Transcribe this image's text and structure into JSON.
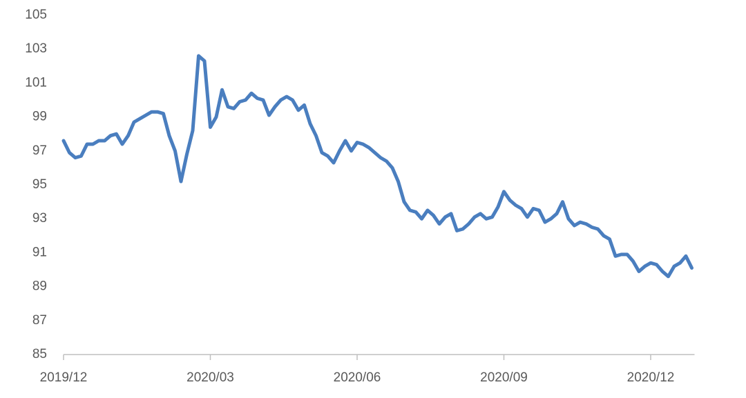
{
  "chart_data": {
    "type": "line",
    "color": "#4a7ebf",
    "categories": [
      "2019/12",
      null,
      null,
      null,
      null,
      null,
      null,
      null,
      null,
      null,
      null,
      null,
      null,
      null,
      null,
      null,
      null,
      null,
      null,
      null,
      null,
      null,
      null,
      null,
      null,
      "2020/03",
      null,
      null,
      null,
      null,
      null,
      null,
      null,
      null,
      null,
      null,
      null,
      null,
      null,
      null,
      null,
      null,
      null,
      null,
      null,
      null,
      null,
      null,
      null,
      null,
      "2020/06",
      null,
      null,
      null,
      null,
      null,
      null,
      null,
      null,
      null,
      null,
      null,
      null,
      null,
      null,
      null,
      null,
      null,
      null,
      null,
      null,
      null,
      null,
      null,
      null,
      "2020/09",
      null,
      null,
      null,
      null,
      null,
      null,
      null,
      null,
      null,
      null,
      null,
      null,
      null,
      null,
      null,
      null,
      null,
      null,
      null,
      null,
      null,
      null,
      null,
      null,
      "2020/12",
      null,
      null,
      null,
      null,
      null,
      null,
      null
    ],
    "values": [
      97.6,
      96.9,
      96.6,
      96.7,
      97.4,
      97.4,
      97.6,
      97.6,
      97.9,
      98.0,
      97.4,
      97.9,
      98.7,
      98.9,
      99.1,
      99.3,
      99.3,
      99.2,
      97.9,
      97.0,
      95.2,
      96.8,
      98.2,
      102.6,
      102.3,
      98.4,
      99.0,
      100.6,
      99.6,
      99.5,
      99.9,
      100.0,
      100.4,
      100.1,
      100.0,
      99.1,
      99.6,
      100.0,
      100.2,
      100.0,
      99.4,
      99.7,
      98.6,
      97.9,
      96.9,
      96.7,
      96.3,
      97.0,
      97.6,
      97.0,
      97.5,
      97.4,
      97.2,
      96.9,
      96.6,
      96.4,
      96.0,
      95.2,
      94.0,
      93.5,
      93.4,
      93.0,
      93.5,
      93.2,
      92.7,
      93.1,
      93.3,
      92.3,
      92.4,
      92.7,
      93.1,
      93.3,
      93.0,
      93.1,
      93.7,
      94.6,
      94.1,
      93.8,
      93.6,
      93.1,
      93.6,
      93.5,
      92.8,
      93.0,
      93.3,
      94.0,
      93.0,
      92.6,
      92.8,
      92.7,
      92.5,
      92.4,
      92.0,
      91.8,
      90.8,
      90.9,
      90.9,
      90.5,
      89.9,
      90.2,
      90.4,
      90.3,
      89.9,
      89.6,
      90.2,
      90.4,
      90.8,
      90.1
    ],
    "ylim": [
      85,
      105
    ],
    "yticks": [
      85,
      87,
      89,
      91,
      93,
      95,
      97,
      99,
      101,
      103,
      105
    ]
  }
}
